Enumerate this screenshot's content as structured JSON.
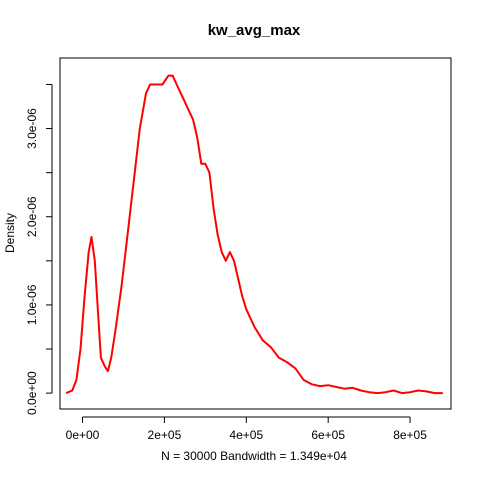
{
  "chart_data": {
    "type": "line",
    "title": "kw_avg_max",
    "xlabel": "N = 30000   Bandwidth = 1.349e+04",
    "ylabel": "Density",
    "xlim": [
      -55000,
      900000
    ],
    "ylim": [
      -1.8e-07,
      3.8e-06
    ],
    "x_ticks": [
      0,
      200000,
      400000,
      600000,
      800000
    ],
    "x_tick_labels": [
      "0e+00",
      "2e+05",
      "4e+05",
      "6e+05",
      "8e+05"
    ],
    "y_ticks": [
      0,
      5e-07,
      1e-06,
      1.5e-06,
      2e-06,
      2.5e-06,
      3e-06,
      3.5e-06
    ],
    "y_tick_labels": [
      "0.0e+00",
      "",
      "1.0e-06",
      "",
      "2.0e-06",
      "",
      "3.0e-06",
      ""
    ],
    "line_color": "#ff0000",
    "grid": false,
    "legend": "none",
    "series": [
      {
        "x": [
          -40000,
          -25000,
          -15000,
          -5000,
          5000,
          15000,
          22000,
          30000,
          38000,
          45000,
          55000,
          62000,
          70000,
          80000,
          95000,
          110000,
          125000,
          140000,
          155000,
          165000,
          180000,
          195000,
          210000,
          220000,
          230000,
          240000,
          250000,
          260000,
          270000,
          280000,
          290000,
          300000,
          310000,
          320000,
          330000,
          340000,
          350000,
          360000,
          370000,
          380000,
          390000,
          400000,
          420000,
          440000,
          460000,
          480000,
          500000,
          520000,
          540000,
          560000,
          580000,
          600000,
          620000,
          640000,
          660000,
          680000,
          700000,
          720000,
          740000,
          760000,
          780000,
          800000,
          820000,
          840000,
          860000,
          880000
        ],
        "values": [
          0.0,
          3e-08,
          1.5e-07,
          5e-07,
          1.1e-06,
          1.6e-06,
          1.77e-06,
          1.5e-06,
          9e-07,
          4e-07,
          3e-07,
          2.5e-07,
          4e-07,
          7e-07,
          1.2e-06,
          1.8e-06,
          2.4e-06,
          3e-06,
          3.4e-06,
          3.5e-06,
          3.5e-06,
          3.5e-06,
          3.6e-06,
          3.6e-06,
          3.5e-06,
          3.4e-06,
          3.3e-06,
          3.2e-06,
          3.1e-06,
          2.9e-06,
          2.6e-06,
          2.6e-06,
          2.5e-06,
          2.1e-06,
          1.8e-06,
          1.6e-06,
          1.5e-06,
          1.6e-06,
          1.5e-06,
          1.3e-06,
          1.1e-06,
          9.5e-07,
          7.5e-07,
          6e-07,
          5.2e-07,
          4e-07,
          3.5e-07,
          2.8e-07,
          1.5e-07,
          1e-07,
          8e-08,
          9e-08,
          7e-08,
          5e-08,
          6e-08,
          3e-08,
          1e-08,
          0.0,
          1e-08,
          3e-08,
          0.0,
          1e-08,
          3e-08,
          2e-08,
          0.0,
          0.0
        ]
      }
    ]
  }
}
